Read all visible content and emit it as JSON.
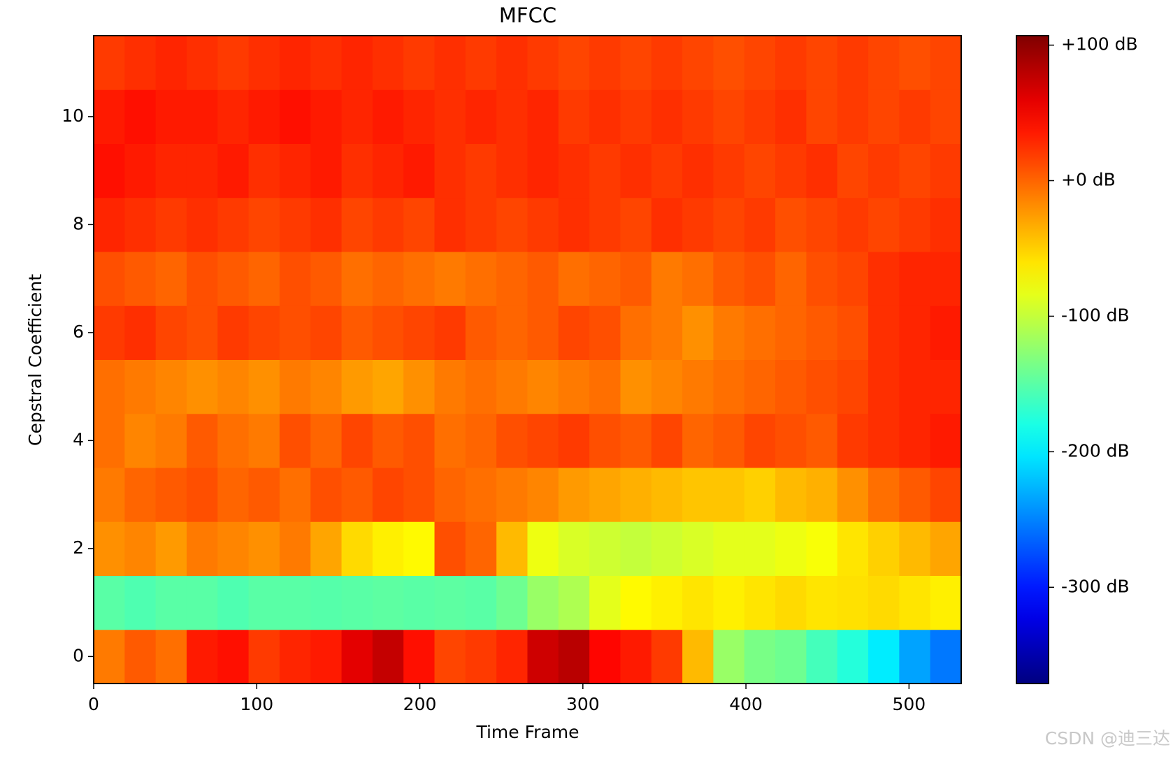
{
  "chart_data": {
    "type": "heatmap",
    "title": "MFCC",
    "x_label": "Time Frame",
    "y_label": "Cepstral Coefficient",
    "colormap": "jet",
    "x_edges": [
      0,
      19,
      38,
      57,
      76,
      95,
      114,
      133,
      152,
      171,
      190,
      209,
      228,
      247,
      266,
      285,
      304,
      323,
      342,
      361,
      380,
      399,
      418,
      437,
      456,
      475,
      494,
      513,
      532
    ],
    "y": [
      0,
      1,
      2,
      3,
      4,
      5,
      6,
      7,
      8,
      9,
      10,
      11
    ],
    "xlim": [
      0,
      532
    ],
    "xticks": [
      0,
      100,
      200,
      300,
      400,
      500
    ],
    "ylim": [
      -0.5,
      11.5
    ],
    "yticks": [
      0,
      2,
      4,
      6,
      8,
      10
    ],
    "clim": [
      -371,
      107
    ],
    "cticks": [
      {
        "value": 100,
        "label": "+100 dB"
      },
      {
        "value": 0,
        "label": "+0 dB"
      },
      {
        "value": -100,
        "label": "-100 dB"
      },
      {
        "value": -200,
        "label": "-200 dB"
      },
      {
        "value": -300,
        "label": "-300 dB"
      }
    ],
    "values": [
      [
        -10,
        5,
        -5,
        35,
        40,
        20,
        30,
        35,
        60,
        75,
        40,
        15,
        20,
        30,
        70,
        80,
        45,
        35,
        20,
        -40,
        -120,
        -135,
        -140,
        -160,
        -175,
        -200,
        -235,
        -255
      ],
      [
        -150,
        -155,
        -150,
        -150,
        -155,
        -150,
        -150,
        -152,
        -150,
        -148,
        -150,
        -148,
        -150,
        -140,
        -120,
        -110,
        -85,
        -70,
        -65,
        -60,
        -65,
        -60,
        -55,
        -60,
        -58,
        -55,
        -60,
        -65
      ],
      [
        -20,
        -15,
        -25,
        -10,
        -15,
        -20,
        -10,
        -30,
        -55,
        -65,
        -70,
        10,
        0,
        -40,
        -80,
        -90,
        -95,
        -100,
        -95,
        -90,
        -85,
        -85,
        -80,
        -75,
        -60,
        -50,
        -40,
        -30
      ],
      [
        -10,
        0,
        5,
        10,
        0,
        5,
        -5,
        10,
        5,
        15,
        10,
        0,
        -5,
        -10,
        -15,
        -25,
        -30,
        -35,
        -40,
        -45,
        -45,
        -50,
        -40,
        -35,
        -20,
        -5,
        5,
        15
      ],
      [
        -5,
        -15,
        -10,
        5,
        -5,
        -10,
        10,
        0,
        15,
        5,
        10,
        -5,
        0,
        10,
        15,
        20,
        10,
        5,
        15,
        0,
        5,
        15,
        10,
        5,
        20,
        25,
        30,
        35
      ],
      [
        -5,
        -10,
        -15,
        -20,
        -15,
        -20,
        -10,
        -15,
        -25,
        -30,
        -20,
        -10,
        -5,
        -10,
        -15,
        -10,
        -5,
        -20,
        -15,
        -10,
        -5,
        0,
        5,
        10,
        15,
        25,
        30,
        30
      ],
      [
        20,
        25,
        15,
        10,
        20,
        15,
        10,
        15,
        5,
        10,
        15,
        20,
        5,
        0,
        5,
        15,
        10,
        -5,
        -10,
        -20,
        -10,
        -5,
        0,
        5,
        10,
        25,
        30,
        35
      ],
      [
        10,
        5,
        0,
        10,
        5,
        0,
        10,
        5,
        -5,
        0,
        -5,
        -10,
        -5,
        0,
        5,
        -5,
        0,
        5,
        -10,
        -5,
        5,
        10,
        0,
        10,
        15,
        25,
        30,
        30
      ],
      [
        30,
        25,
        20,
        25,
        20,
        15,
        20,
        25,
        15,
        20,
        15,
        25,
        20,
        15,
        20,
        25,
        20,
        15,
        25,
        20,
        15,
        20,
        10,
        15,
        20,
        15,
        20,
        25
      ],
      [
        40,
        35,
        30,
        30,
        35,
        25,
        30,
        35,
        25,
        30,
        35,
        25,
        20,
        25,
        30,
        25,
        20,
        25,
        20,
        25,
        20,
        15,
        20,
        25,
        15,
        20,
        15,
        20
      ],
      [
        35,
        40,
        35,
        35,
        30,
        35,
        40,
        35,
        30,
        35,
        30,
        25,
        30,
        25,
        30,
        20,
        25,
        20,
        25,
        20,
        15,
        20,
        25,
        15,
        20,
        15,
        20,
        15
      ],
      [
        20,
        25,
        30,
        25,
        20,
        25,
        30,
        25,
        30,
        25,
        20,
        25,
        20,
        25,
        20,
        15,
        20,
        15,
        20,
        15,
        10,
        15,
        20,
        15,
        20,
        15,
        10,
        15
      ]
    ]
  },
  "watermark": "CSDN @迪三达"
}
